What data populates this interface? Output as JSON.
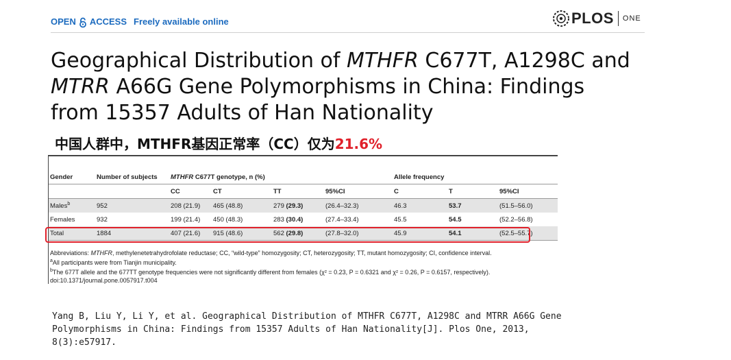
{
  "header": {
    "open_access_pre": "OPEN",
    "open_access_post": "ACCESS",
    "freely": "Freely available online",
    "logo_plos": "PLOS",
    "logo_one": "ONE"
  },
  "title": {
    "line1_prefix": "Geographical Distribution of ",
    "line1_gene": "MTHFR",
    "line1_suffix": " C677T, A1298C and",
    "line2_gene": "MTRR",
    "line2_suffix": " A66G Gene Polymorphisms in China: Findings",
    "line3": "from 15357 Adults of Han Nationality"
  },
  "subtitle": {
    "text": "中国人群中，MTHFR基因正常率（CC）仅为",
    "highlight": "21.6%"
  },
  "table": {
    "col_gender": "Gender",
    "col_subjects": "Number of subjects",
    "col_genotype_gene": "MTHFR",
    "col_genotype_rest": " C677T genotype, n (%)",
    "col_allele": "Allele frequency",
    "sub_headers": [
      "CC",
      "CT",
      "TT",
      "95%CI",
      "C",
      "T",
      "95%CI"
    ],
    "rows": [
      {
        "gender": "Males",
        "sup": "b",
        "n": "952",
        "cc": "208 (21.9)",
        "ct": "465 (48.8)",
        "tt_n": "279",
        "tt_p": "(29.3)",
        "ci1": "(26.4–32.3)",
        "c": "46.3",
        "t": "53.7",
        "ci2": "(51.5–56.0)"
      },
      {
        "gender": "Females",
        "sup": "",
        "n": "932",
        "cc": "199 (21.4)",
        "ct": "450 (48.3)",
        "tt_n": "283",
        "tt_p": "(30.4)",
        "ci1": "(27.4–33.4)",
        "c": "45.5",
        "t": "54.5",
        "ci2": "(52.2–56.8)"
      },
      {
        "gender": "Total",
        "sup": "",
        "n": "1884",
        "cc": "407 (21.6)",
        "ct": "915 (48.6)",
        "tt_n": "562",
        "tt_p": "(29.8)",
        "ci1": "(27.8–32.0)",
        "c": "45.9",
        "t": "54.1",
        "ci2": "(52.5–55.7)"
      }
    ]
  },
  "notes": {
    "abbrev_label": "Abbreviations: ",
    "abbrev_gene": "MTHFR",
    "abbrev_text": ", methylenetetrahydrofolate reductase; CC, “wild-type” homozygosity; CT, heterozygosity; TT, mutant homozygosity; CI, confidence interval.",
    "note_a_sup": "a",
    "note_a": "All participants were from Tianjin municipality.",
    "note_b_sup": "b",
    "note_b": "The 677T allele and the 677TT genotype frequencies were not significantly different from females (χ² = 0.23, P = 0.6321 and χ² = 0.26, P = 0.6157, respectively).",
    "doi": "doi:10.1371/journal.pone.0057917.t004"
  },
  "citation": {
    "line1": "Yang B, Liu Y, Li Y, et al. Geographical Distribution of MTHFR C677T, A1298C and MTRR A66G Gene",
    "line2": "Polymorphisms in China: Findings from 15357 Adults of Han Nationality[J]. Plos One, 2013,",
    "line3": "8(3):e57917."
  },
  "colors": {
    "open_access_blue": "#1c6bbf",
    "highlight_red": "#e0202a",
    "row_band": "#e4e4e4"
  }
}
